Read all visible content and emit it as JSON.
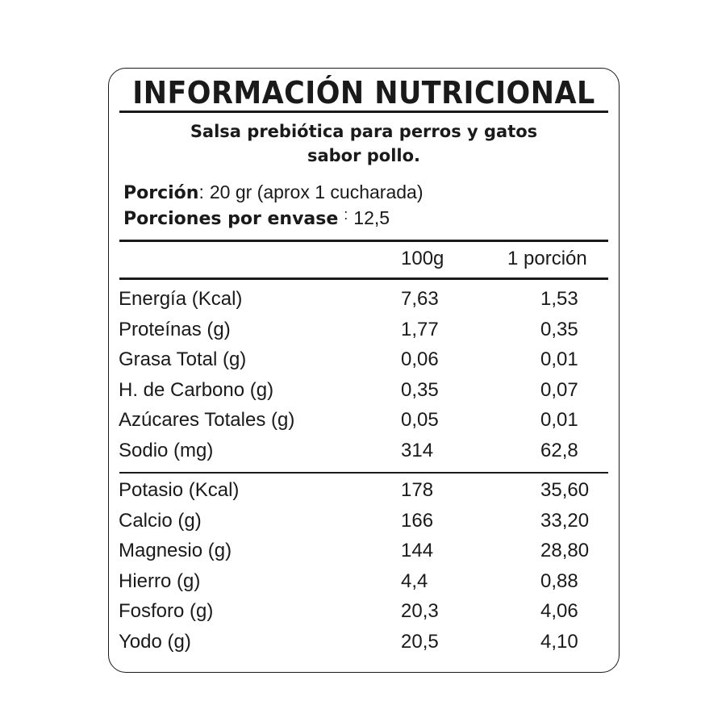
{
  "label": {
    "title": "INFORMACIÓN NUTRICIONAL",
    "product_line1": "Salsa prebiótica para perros y gatos",
    "product_line2": "sabor pollo.",
    "serving_label": "Porción",
    "serving_sep": ":",
    "serving_value": "20 gr (aprox 1 cucharada)",
    "servings_label": "Porciones por envase",
    "servings_sep": ":",
    "servings_value": "12,5",
    "columns": [
      "100g",
      "1 porción"
    ],
    "rows_main": [
      {
        "name": "Energía (Kcal)",
        "per100": "7,63",
        "perServing": "1,53"
      },
      {
        "name": "Proteínas (g)",
        "per100": "1,77",
        "perServing": "0,35"
      },
      {
        "name": "Grasa Total (g)",
        "per100": "0,06",
        "perServing": "0,01"
      },
      {
        "name": "H. de Carbono (g)",
        "per100": "0,35",
        "perServing": "0,07"
      },
      {
        "name": "Azúcares Totales (g)",
        "per100": "0,05",
        "perServing": "0,01"
      },
      {
        "name": "Sodio (mg)",
        "per100": "314",
        "perServing": "62,8"
      }
    ],
    "rows_minerals": [
      {
        "name": "Potasio (Kcal)",
        "per100": "178",
        "perServing": "35,60"
      },
      {
        "name": "Calcio (g)",
        "per100": "166",
        "perServing": "33,20"
      },
      {
        "name": "Magnesio (g)",
        "per100": "144",
        "perServing": "28,80"
      },
      {
        "name": "Hierro (g)",
        "per100": "4,4",
        "perServing": "0,88"
      },
      {
        "name": "Fosforo (g)",
        "per100": "20,3",
        "perServing": "4,06"
      },
      {
        "name": "Yodo (g)",
        "per100": "20,5",
        "perServing": "4,10"
      }
    ]
  }
}
